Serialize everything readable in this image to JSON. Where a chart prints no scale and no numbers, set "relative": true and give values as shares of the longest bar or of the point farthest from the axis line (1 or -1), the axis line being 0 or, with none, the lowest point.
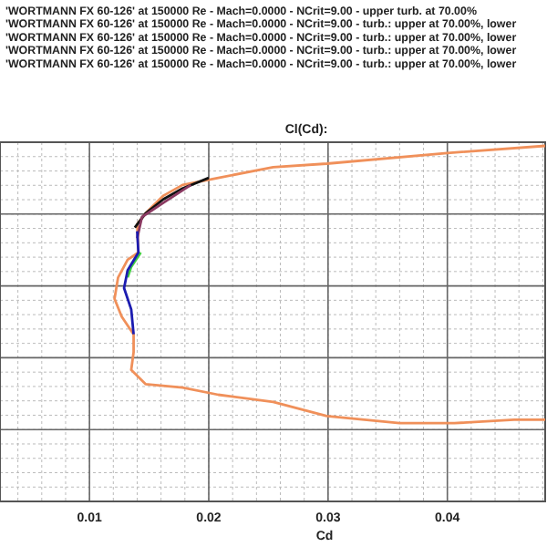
{
  "chart_data": {
    "type": "line",
    "title": "Cl(Cd):",
    "xlabel": "Cd",
    "annotations": [
      "'WORTMANN FX 60-126' at 150000 Re - Mach=0.0000 - NCrit=9.00 - upper turb. at 70.00%",
      "'WORTMANN FX 60-126' at 150000 Re - Mach=0.0000 - NCrit=9.00 - turb.: upper at 70.00%, lower",
      "'WORTMANN FX 60-126' at 150000 Re - Mach=0.0000 - NCrit=9.00 - turb.: upper at 70.00%, lower",
      "'WORTMANN FX 60-126' at 150000 Re - Mach=0.0000 - NCrit=9.00 - turb.: upper at 70.00%, lower",
      "'WORTMANN FX 60-126' at 150000 Re - Mach=0.0000 - NCrit=9.00 - turb.: upper at 70.00%, lower"
    ],
    "relative": true,
    "xlim": [
      0.0025,
      0.0482
    ],
    "xticks": [
      0.01,
      0.02,
      0.03,
      0.04
    ],
    "grid": true,
    "marker": "none",
    "line_style": "solid",
    "series": [
      {
        "color": "#f0905a",
        "x": [
          0.0482,
          0.04,
          0.0299,
          0.0254,
          0.0208,
          0.0178,
          0.0162,
          0.0147,
          0.014,
          0.0141,
          0.0132,
          0.0124,
          0.0121,
          0.0127,
          0.0137,
          0.0137,
          0.0135,
          0.0147,
          0.0178,
          0.0208,
          0.0254,
          0.0299,
          0.036,
          0.0406,
          0.0456,
          0.0482
        ],
        "values": [
          1.0,
          0.98,
          0.95,
          0.94,
          0.91,
          0.89,
          0.86,
          0.81,
          0.78,
          0.7,
          0.68,
          0.63,
          0.57,
          0.52,
          0.47,
          0.42,
          0.37,
          0.33,
          0.32,
          0.3,
          0.28,
          0.24,
          0.22,
          0.22,
          0.23,
          0.23
        ]
      },
      {
        "color": "#111111",
        "x": [
          0.0138,
          0.0147,
          0.0162,
          0.0178,
          0.02
        ],
        "values": [
          0.77,
          0.81,
          0.85,
          0.88,
          0.91
        ]
      },
      {
        "color": "#8b3a62",
        "x": [
          0.014,
          0.0144,
          0.0162,
          0.0185
        ],
        "values": [
          0.74,
          0.8,
          0.84,
          0.89
        ]
      },
      {
        "color": "#40d040",
        "x": [
          0.0143,
          0.0135,
          0.0132
        ],
        "values": [
          0.7,
          0.66,
          0.63
        ]
      },
      {
        "color": "#1c1cb0",
        "x": [
          0.014,
          0.0141,
          0.0132,
          0.0129,
          0.0135,
          0.0137
        ],
        "values": [
          0.76,
          0.7,
          0.65,
          0.6,
          0.54,
          0.47
        ]
      }
    ]
  }
}
